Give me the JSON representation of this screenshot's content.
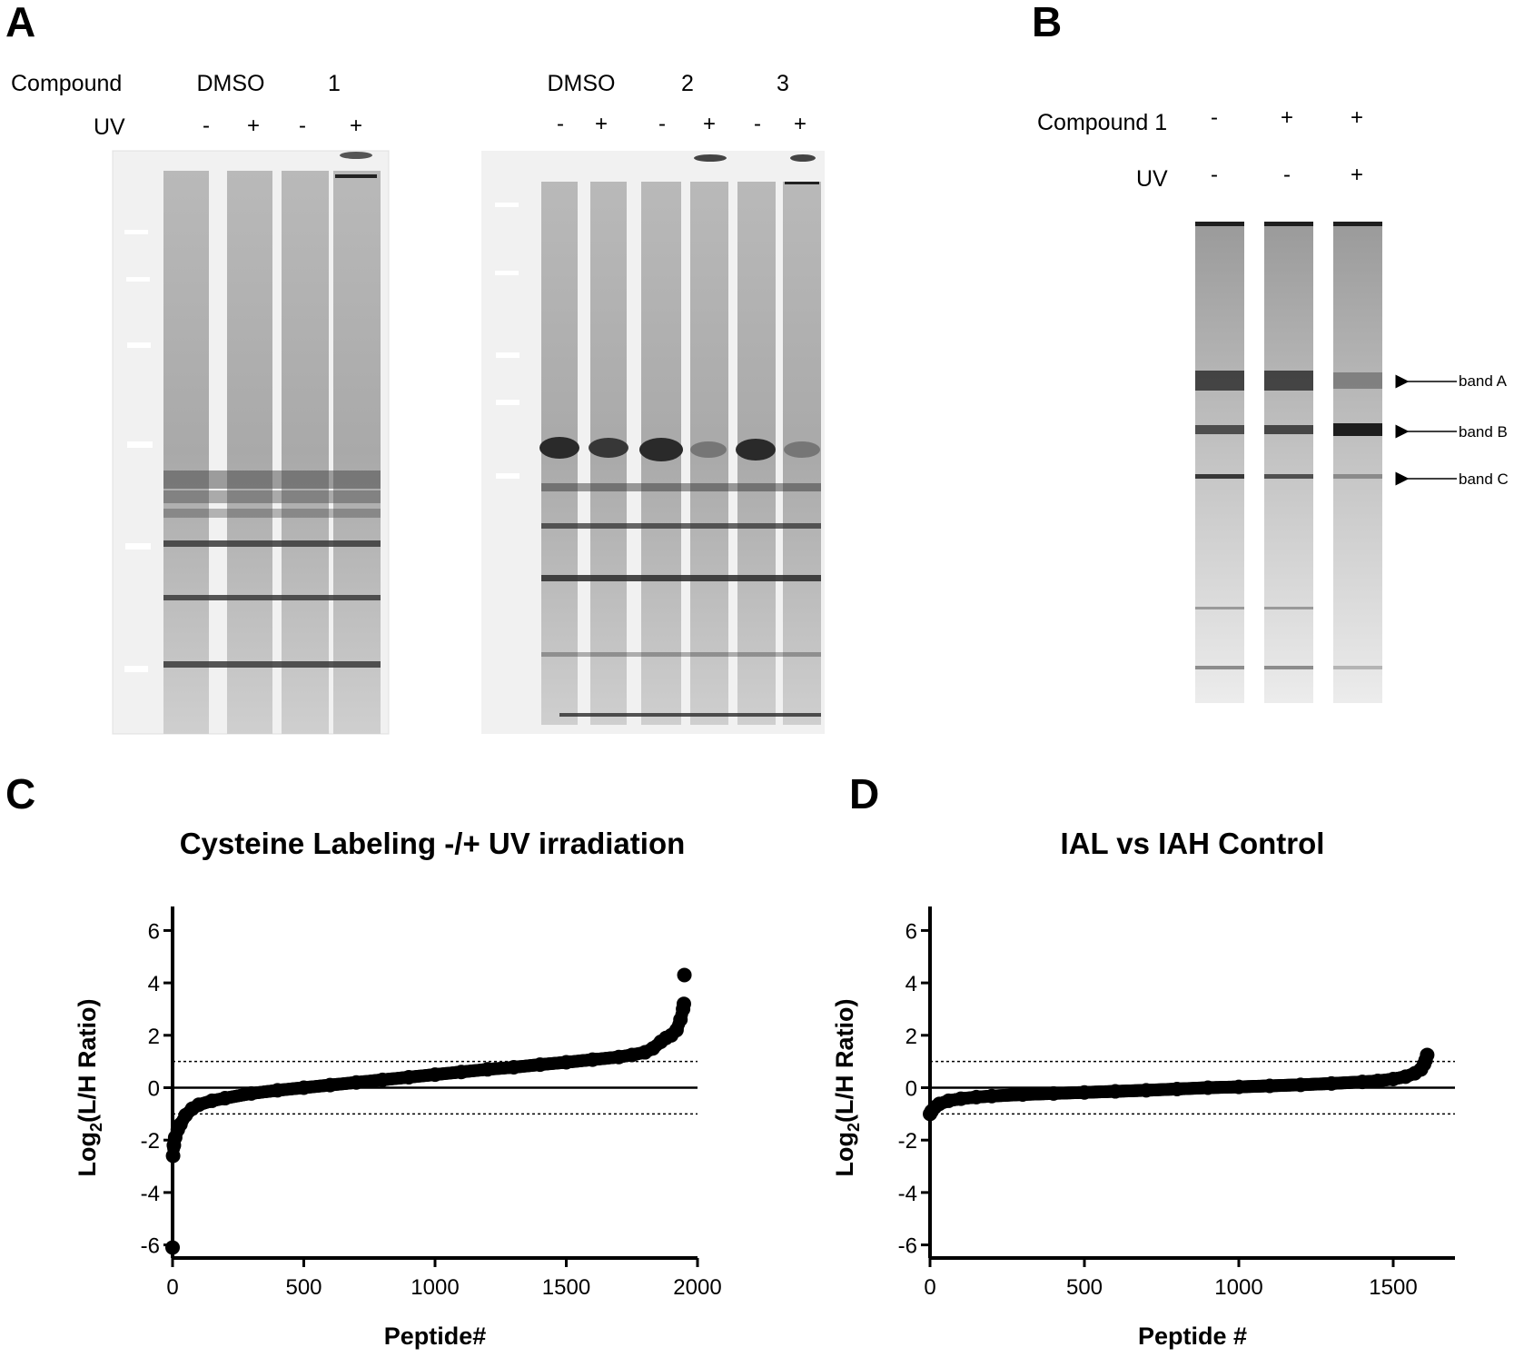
{
  "figure": {
    "panels": {
      "A": {
        "letter": "A",
        "row_labels": {
          "compound": "Compound",
          "uv": "UV"
        },
        "gel1": {
          "compound_labels": [
            "DMSO",
            "1"
          ],
          "uv_signs": [
            "-",
            "+",
            "-",
            "+"
          ]
        },
        "gel2": {
          "compound_labels": [
            "DMSO",
            "2",
            "3"
          ],
          "uv_signs": [
            "-",
            "+",
            "-",
            "+",
            "-",
            "+"
          ]
        }
      },
      "B": {
        "letter": "B",
        "row_labels": {
          "compound": "Compound 1",
          "uv": "UV"
        },
        "compound_signs": [
          "-",
          "+",
          "+"
        ],
        "uv_signs": [
          "-",
          "-",
          "+"
        ],
        "band_labels": [
          "band A",
          "band B",
          "band C"
        ]
      },
      "C": {
        "letter": "C"
      },
      "D": {
        "letter": "D"
      }
    }
  },
  "chart_data": [
    {
      "panel": "C",
      "type": "scatter",
      "title": "Cysteine Labeling -/+ UV irradiation",
      "xlabel": "Peptide#",
      "ylabel_prefix": "Log",
      "ylabel_sub": "2",
      "ylabel_suffix": "(L/H Ratio)",
      "xlim": [
        0,
        2000
      ],
      "ylim": [
        -6.5,
        6.5
      ],
      "xticks": [
        0,
        500,
        1000,
        1500,
        2000
      ],
      "yticks": [
        6,
        4,
        2,
        0,
        -2,
        -4,
        -6
      ],
      "threshold_lines": [
        1,
        -1
      ],
      "zero_line": 0,
      "n_points": 1950,
      "series": [
        {
          "x": [
            0,
            2,
            5,
            10,
            20,
            30,
            50,
            75,
            100,
            150,
            200,
            300,
            400,
            500,
            600,
            700,
            800,
            900,
            1000,
            1100,
            1200,
            1300,
            1400,
            1500,
            1600,
            1700,
            1750,
            1800,
            1830,
            1860,
            1880,
            1900,
            1920,
            1935,
            1945,
            1948,
            1950
          ],
          "y": [
            -6.1,
            -2.6,
            -2.2,
            -1.9,
            -1.6,
            -1.4,
            -1.05,
            -0.8,
            -0.65,
            -0.5,
            -0.4,
            -0.22,
            -0.1,
            0.0,
            0.1,
            0.2,
            0.3,
            0.4,
            0.5,
            0.6,
            0.7,
            0.78,
            0.88,
            0.97,
            1.07,
            1.17,
            1.25,
            1.35,
            1.5,
            1.75,
            1.9,
            2.0,
            2.2,
            2.6,
            3.0,
            3.2,
            4.3
          ]
        }
      ]
    },
    {
      "panel": "D",
      "type": "scatter",
      "title": "IAL vs IAH Control",
      "xlabel": "Peptide #",
      "ylabel_prefix": "Log",
      "ylabel_sub": "2",
      "ylabel_suffix": "(L/H Ratio)",
      "xlim": [
        0,
        1700
      ],
      "ylim": [
        -6.5,
        6.5
      ],
      "xticks": [
        0,
        500,
        1000,
        1500
      ],
      "yticks": [
        6,
        4,
        2,
        0,
        -2,
        -4,
        -6
      ],
      "threshold_lines": [
        1,
        -1
      ],
      "zero_line": 0,
      "n_points": 1610,
      "series": [
        {
          "x": [
            0,
            5,
            15,
            30,
            60,
            100,
            150,
            200,
            300,
            400,
            500,
            600,
            700,
            800,
            900,
            1000,
            1100,
            1200,
            1300,
            1400,
            1450,
            1500,
            1540,
            1570,
            1590,
            1600,
            1605,
            1610
          ],
          "y": [
            -1.0,
            -0.9,
            -0.75,
            -0.62,
            -0.5,
            -0.42,
            -0.36,
            -0.32,
            -0.26,
            -0.22,
            -0.18,
            -0.14,
            -0.1,
            -0.05,
            0.0,
            0.03,
            0.07,
            0.11,
            0.16,
            0.22,
            0.26,
            0.33,
            0.42,
            0.55,
            0.7,
            0.9,
            1.05,
            1.25
          ]
        }
      ]
    }
  ]
}
